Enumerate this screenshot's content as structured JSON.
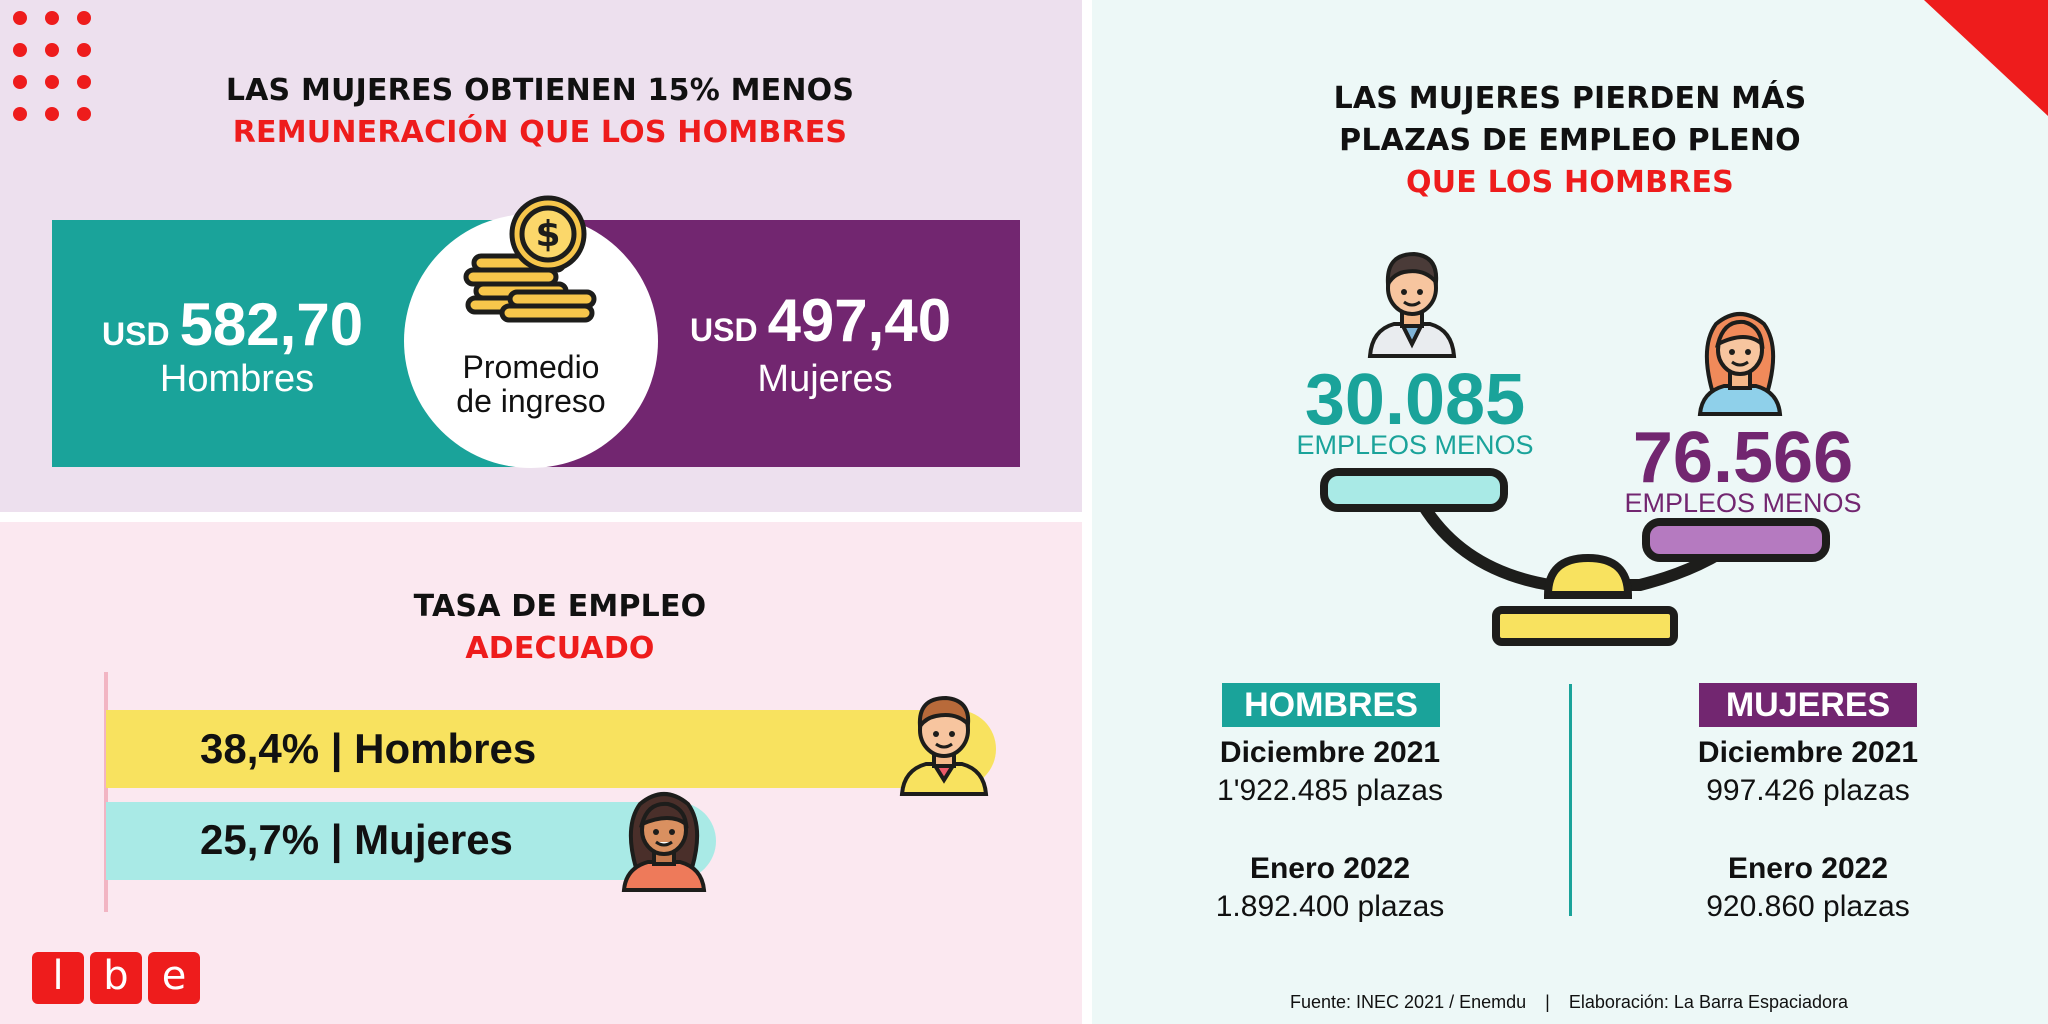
{
  "pay": {
    "title_line1": "LAS MUJERES OBTIENEN 15% MENOS",
    "title_line2": "REMUNERACIÓN QUE LOS HOMBRES",
    "men": {
      "currency": "USD",
      "amount": "582,70",
      "label": "Hombres"
    },
    "women": {
      "currency": "USD",
      "amount": "497,40",
      "label": "Mujeres"
    },
    "center_line1": "Promedio",
    "center_line2": "de ingreso",
    "center_icon": "coin-stack-dollar-icon"
  },
  "rate": {
    "title_line1": "TASA DE EMPLEO",
    "title_line2": "ADECUADO",
    "men_label": "38,4% | Hombres",
    "men_value": 38.4,
    "women_label": "25,7% | Mujeres",
    "women_value": 25.7
  },
  "jobs": {
    "title_line1": "LAS MUJERES PIERDEN MÁS",
    "title_line2": "PLAZAS DE EMPLEO PLENO",
    "title_line3": "QUE LOS HOMBRES",
    "men_big": "30.085",
    "men_sub": "EMPLEOS MENOS",
    "women_big": "76.566",
    "women_sub": "EMPLEOS MENOS",
    "men_tag": "HOMBRES",
    "women_tag": "MUJERES",
    "men_period1": "Diciembre 2021",
    "men_value1": "1'922.485 plazas",
    "men_period2": "Enero 2022",
    "men_value2": "1.892.400 plazas",
    "women_period1": "Diciembre 2021",
    "women_value1": "997.426 plazas",
    "women_period2": "Enero 2022",
    "women_value2": "920.860 plazas",
    "icon": "balance-scale-icon"
  },
  "footer": {
    "source": "Fuente: INEC 2021 / Enemdu",
    "separator": "|",
    "credit": "Elaboración: La Barra Espaciadora"
  },
  "logo": {
    "letters": [
      "l",
      "b",
      "e"
    ]
  },
  "colors": {
    "teal": "#1aa39a",
    "purple": "#722670",
    "red": "#ee1c1c",
    "yellow": "#f8e25f",
    "cyan": "#a9eae6"
  }
}
